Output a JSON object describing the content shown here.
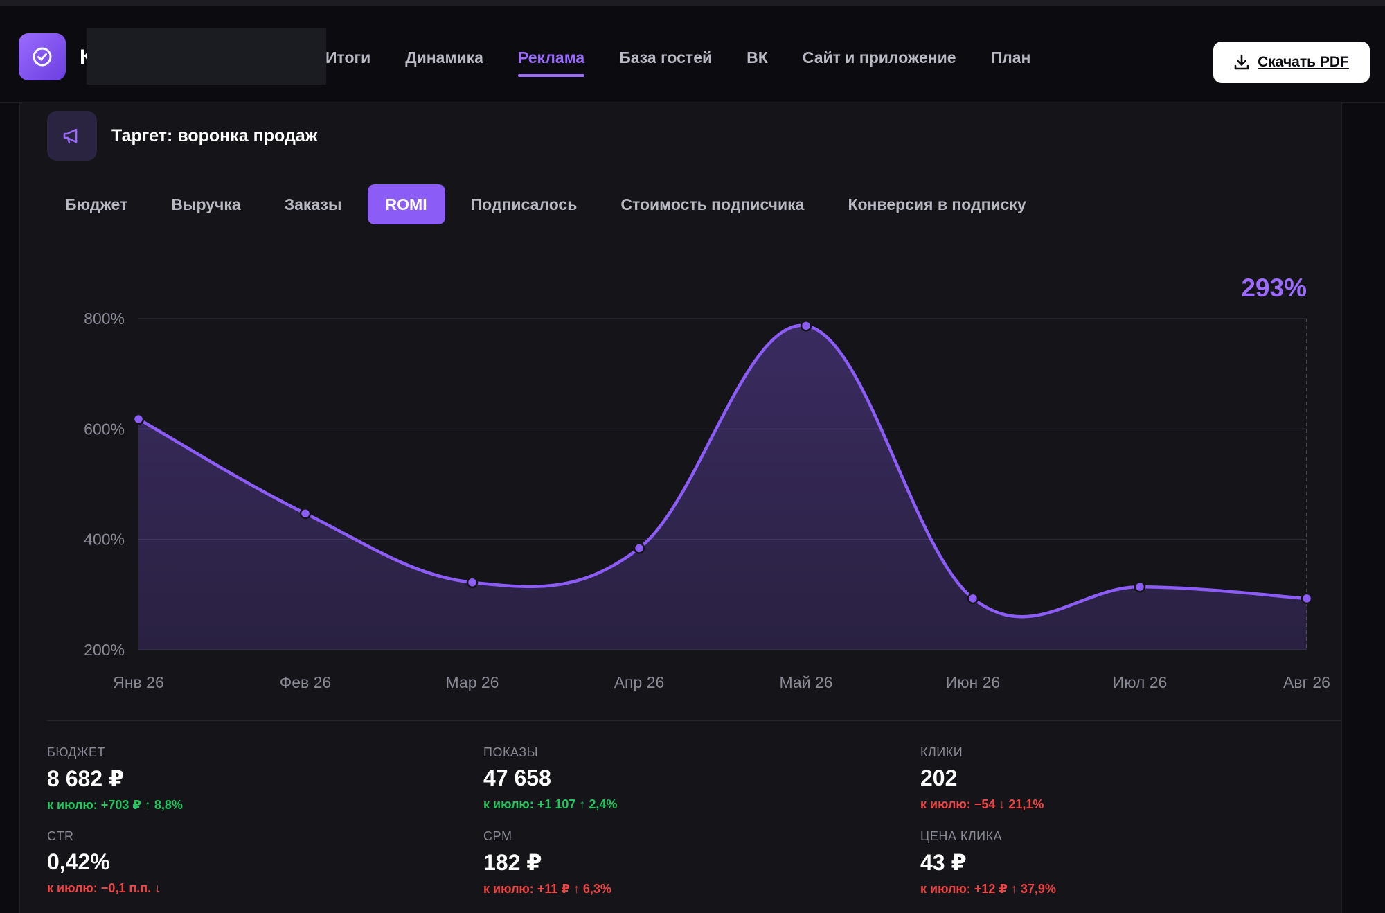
{
  "header": {
    "logo_letter": "К",
    "nav": [
      {
        "label": "Итоги",
        "active": false
      },
      {
        "label": "Динамика",
        "active": false
      },
      {
        "label": "Реклама",
        "active": true
      },
      {
        "label": "База гостей",
        "active": false
      },
      {
        "label": "ВК",
        "active": false
      },
      {
        "label": "Сайт и приложение",
        "active": false
      },
      {
        "label": "План",
        "active": false
      }
    ],
    "pdf_label": "Скачать PDF"
  },
  "section": {
    "title": "Таргет: воронка продаж",
    "icon": "megaphone-icon"
  },
  "tabs": [
    {
      "label": "Бюджет",
      "active": false
    },
    {
      "label": "Выручка",
      "active": false
    },
    {
      "label": "Заказы",
      "active": false
    },
    {
      "label": "ROMI",
      "active": true
    },
    {
      "label": "Подписалось",
      "active": false
    },
    {
      "label": "Стоимость подписчика",
      "active": false
    },
    {
      "label": "Конверсия в подписку",
      "active": false
    }
  ],
  "chart_data": {
    "type": "area",
    "categories": [
      "Янв 26",
      "Фев 26",
      "Мар 26",
      "Апр 26",
      "Май 26",
      "Июн 26",
      "Июл 26",
      "Авг 26"
    ],
    "values": [
      618,
      447,
      322,
      384,
      787,
      293,
      314,
      293
    ],
    "yticks": [
      "200%",
      "400%",
      "600%",
      "800%"
    ],
    "ylim": [
      200,
      800
    ],
    "highlight_label": "293%",
    "grid": true,
    "color": "#8b5cf6"
  },
  "stats": [
    {
      "label": "БЮДЖЕТ",
      "value": "8 682 ₽",
      "delta": "к июлю: +703 ₽ ↑ 8,8%",
      "trend": "up"
    },
    {
      "label": "ПОКАЗЫ",
      "value": "47 658",
      "delta": "к июлю: +1 107 ↑ 2,4%",
      "trend": "up"
    },
    {
      "label": "КЛИКИ",
      "value": "202",
      "delta": "к июлю: −54 ↓ 21,1%",
      "trend": "down"
    },
    {
      "label": "CTR",
      "value": "0,42%",
      "delta": "к июлю: −0,1 п.п. ↓",
      "trend": "down"
    },
    {
      "label": "CPM",
      "value": "182 ₽",
      "delta": "к июлю: +11 ₽ ↑ 6,3%",
      "trend": "down"
    },
    {
      "label": "ЦЕНА КЛИКА",
      "value": "43 ₽",
      "delta": "к июлю: +12 ₽ ↑ 37,9%",
      "trend": "down"
    }
  ],
  "colors": {
    "accent": "#8b5cf6",
    "up": "#22c55e",
    "down": "#ef4444"
  }
}
